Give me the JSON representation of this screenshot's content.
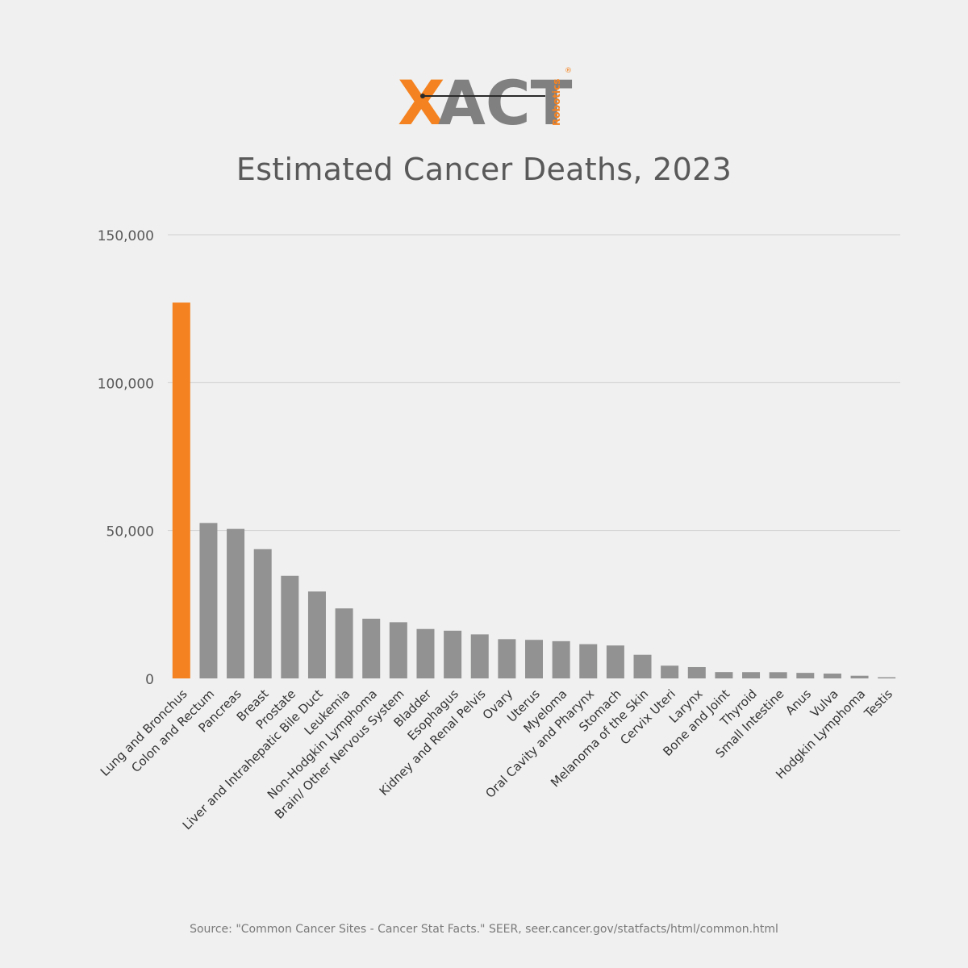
{
  "logo": {
    "word": "XACT",
    "sub": "Robotics",
    "reg": "®"
  },
  "colors": {
    "highlight": "#f58220",
    "bar": "#929292",
    "grid": "#cfcfcf",
    "text": "#595959"
  },
  "chart_data": {
    "type": "bar",
    "title": "Estimated Cancer Deaths, 2023",
    "xlabel": "",
    "ylabel": "",
    "ylim": [
      0,
      150000
    ],
    "yticks": [
      0,
      50000,
      100000,
      150000
    ],
    "ytick_labels": [
      "0",
      "50,000",
      "100,000",
      "150,000"
    ],
    "grid": true,
    "highlight_index": 0,
    "categories": [
      "Lung and Bronchus",
      "Colon and Rectum",
      "Pancreas",
      "Breast",
      "Prostate",
      "Liver and Intrahepatic Bile Duct",
      "Leukemia",
      "Non-Hodgkin Lymphoma",
      "Brain/ Other Nervous System",
      "Bladder",
      "Esophagus",
      "Kidney and Renal Pelvis",
      "Ovary",
      "Uterus",
      "Myeloma",
      "Oral Cavity and Pharynx",
      "Stomach",
      "Melanoma of the Skin",
      "Cervix Uteri",
      "Larynx",
      "Bone and Joint",
      "Thyroid",
      "Small Intestine",
      "Anus",
      "Vulva",
      "Hodgkin Lymphoma",
      "Testis"
    ],
    "values": [
      127070,
      52550,
      50550,
      43700,
      34700,
      29380,
      23670,
      20180,
      18990,
      16710,
      16130,
      14890,
      13270,
      13030,
      12590,
      11580,
      11130,
      7990,
      4310,
      3820,
      2140,
      2120,
      2100,
      1870,
      1630,
      900,
      400
    ]
  },
  "source": "Source: \"Common Cancer Sites - Cancer Stat Facts.\" SEER, seer.cancer.gov/statfacts/html/common.html"
}
